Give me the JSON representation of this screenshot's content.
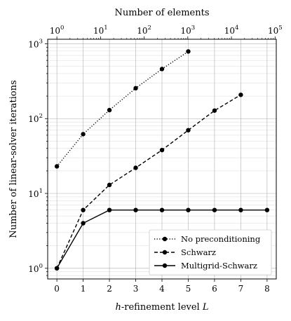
{
  "chart_data": {
    "type": "line",
    "xlabel": "h-refinement level L",
    "xlabel_parts": {
      "pre": "h",
      "mid": "-refinement level ",
      "post": "L"
    },
    "ylabel": "Number of linear-solver iterations",
    "top_xlabel": "Number of elements",
    "xlim": [
      -0.35,
      8.35
    ],
    "ylim": [
      0.72,
      1150
    ],
    "y_scale": "log",
    "x_ticks": [
      0,
      1,
      2,
      3,
      4,
      5,
      6,
      7,
      8
    ],
    "y_ticks": [
      {
        "value": 1,
        "base": "10",
        "exp": "0"
      },
      {
        "value": 10,
        "base": "10",
        "exp": "1"
      },
      {
        "value": 100,
        "base": "10",
        "exp": "2"
      },
      {
        "value": 1000,
        "base": "10",
        "exp": "3"
      }
    ],
    "top_axis": {
      "scale": "log",
      "note": "number of elements = 4^L",
      "ticks": [
        {
          "value": 1,
          "base": "10",
          "exp": "0"
        },
        {
          "value": 10,
          "base": "10",
          "exp": "1"
        },
        {
          "value": 100,
          "base": "10",
          "exp": "2"
        },
        {
          "value": 1000,
          "base": "10",
          "exp": "3"
        },
        {
          "value": 10000,
          "base": "10",
          "exp": "4"
        },
        {
          "value": 100000,
          "base": "10",
          "exp": "5"
        }
      ]
    },
    "grid": true,
    "legend_position": "lower-right",
    "series": [
      {
        "name": "No preconditioning",
        "style": "dotted",
        "x": [
          0,
          1,
          2,
          3,
          4,
          5
        ],
        "values": [
          23,
          62,
          130,
          255,
          460,
          790
        ]
      },
      {
        "name": "Schwarz",
        "style": "dashed",
        "x": [
          0,
          1,
          2,
          3,
          4,
          5,
          6,
          7
        ],
        "values": [
          1,
          6,
          13,
          22,
          38,
          70,
          128,
          208
        ]
      },
      {
        "name": "Multigrid-Schwarz",
        "style": "solid",
        "x": [
          0,
          1,
          2,
          3,
          4,
          5,
          6,
          7,
          8
        ],
        "values": [
          1,
          4,
          6,
          6,
          6,
          6,
          6,
          6,
          6
        ]
      }
    ],
    "color": "#000000"
  }
}
